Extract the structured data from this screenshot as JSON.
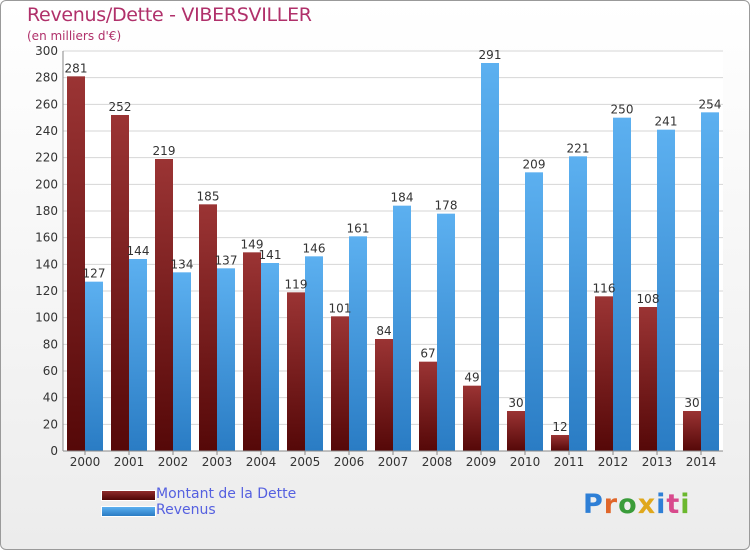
{
  "header": {
    "title": "Revenus/Dette - VIBERSVILLER",
    "subtitle": "(en milliers d'€)"
  },
  "colors": {
    "title": "#b0306a",
    "dette": "#7a1c1c",
    "revenus": "#3b97de",
    "legend_text": "#5560e0"
  },
  "chart_data": {
    "type": "bar",
    "title": "Revenus/Dette - VIBERSVILLER",
    "subtitle": "(en milliers d'€)",
    "categories": [
      "2000",
      "2001",
      "2002",
      "2003",
      "2004",
      "2005",
      "2006",
      "2007",
      "2008",
      "2009",
      "2010",
      "2011",
      "2012",
      "2013",
      "2014"
    ],
    "series": [
      {
        "name": "Montant de la Dette",
        "values": [
          281,
          252,
          219,
          185,
          149,
          119,
          101,
          84,
          67,
          49,
          30,
          12,
          116,
          108,
          30
        ]
      },
      {
        "name": "Revenus",
        "values": [
          127,
          144,
          134,
          137,
          141,
          146,
          161,
          184,
          178,
          291,
          209,
          221,
          250,
          241,
          254
        ]
      }
    ],
    "ylim": [
      0,
      300
    ],
    "yticks": [
      0,
      20,
      40,
      60,
      80,
      100,
      120,
      140,
      160,
      180,
      200,
      220,
      240,
      260,
      280,
      300
    ],
    "grid": true,
    "legend": "bottom-left"
  },
  "legend": {
    "items": [
      {
        "label": "Montant de la Dette"
      },
      {
        "label": "Revenus"
      }
    ]
  },
  "logo": {
    "letters": [
      "P",
      "r",
      "o",
      "x",
      "i",
      "t",
      "i"
    ],
    "colors": [
      "#2e7fd6",
      "#e0662a",
      "#3a9c3a",
      "#e0a81c",
      "#2e7fd6",
      "#d84a8c",
      "#6bb82e"
    ]
  }
}
